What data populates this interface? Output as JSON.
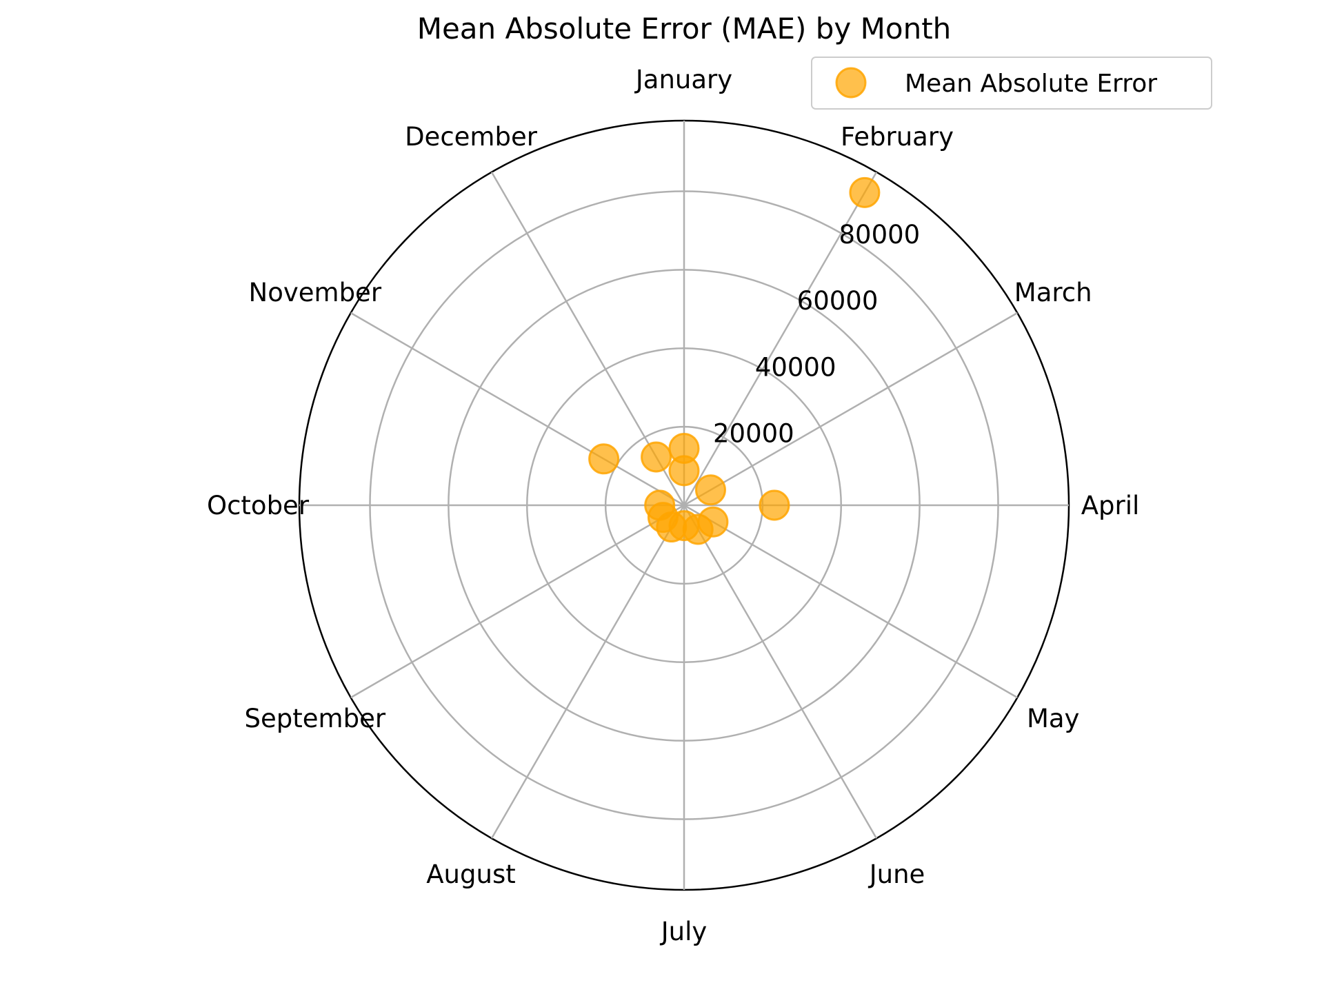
{
  "chart_data": {
    "type": "scatter",
    "polar": true,
    "title": "Mean Absolute Error (MAE) by Month",
    "categories": [
      "January",
      "February",
      "March",
      "April",
      "May",
      "June",
      "July",
      "August",
      "September",
      "October",
      "November",
      "December"
    ],
    "radial_ticks": [
      20000,
      40000,
      60000,
      80000
    ],
    "rlim": [
      0,
      98000
    ],
    "grid": true,
    "legend": {
      "entries": [
        "Mean Absolute Error"
      ],
      "placement": "top-right"
    },
    "series": [
      {
        "name": "Mean Absolute Error",
        "color": "#FFA500",
        "points": [
          {
            "angle_category": "January",
            "r": 14500
          },
          {
            "angle_category": "January",
            "r": 8800
          },
          {
            "angle_category": "February",
            "r": 92000
          },
          {
            "angle_category": "March",
            "r": 7800
          },
          {
            "angle_category": "April",
            "r": 23000
          },
          {
            "angle_category": "May",
            "r": 8500
          },
          {
            "angle_category": "June",
            "r": 7100
          },
          {
            "angle_category": "July",
            "r": 5200
          },
          {
            "angle_category": "August",
            "r": 6400
          },
          {
            "angle_category": "September",
            "r": 6200
          },
          {
            "angle_category": "October",
            "r": 6200
          },
          {
            "angle_category": "November",
            "r": 23600
          },
          {
            "angle_category": "December",
            "r": 14200
          }
        ]
      }
    ]
  }
}
